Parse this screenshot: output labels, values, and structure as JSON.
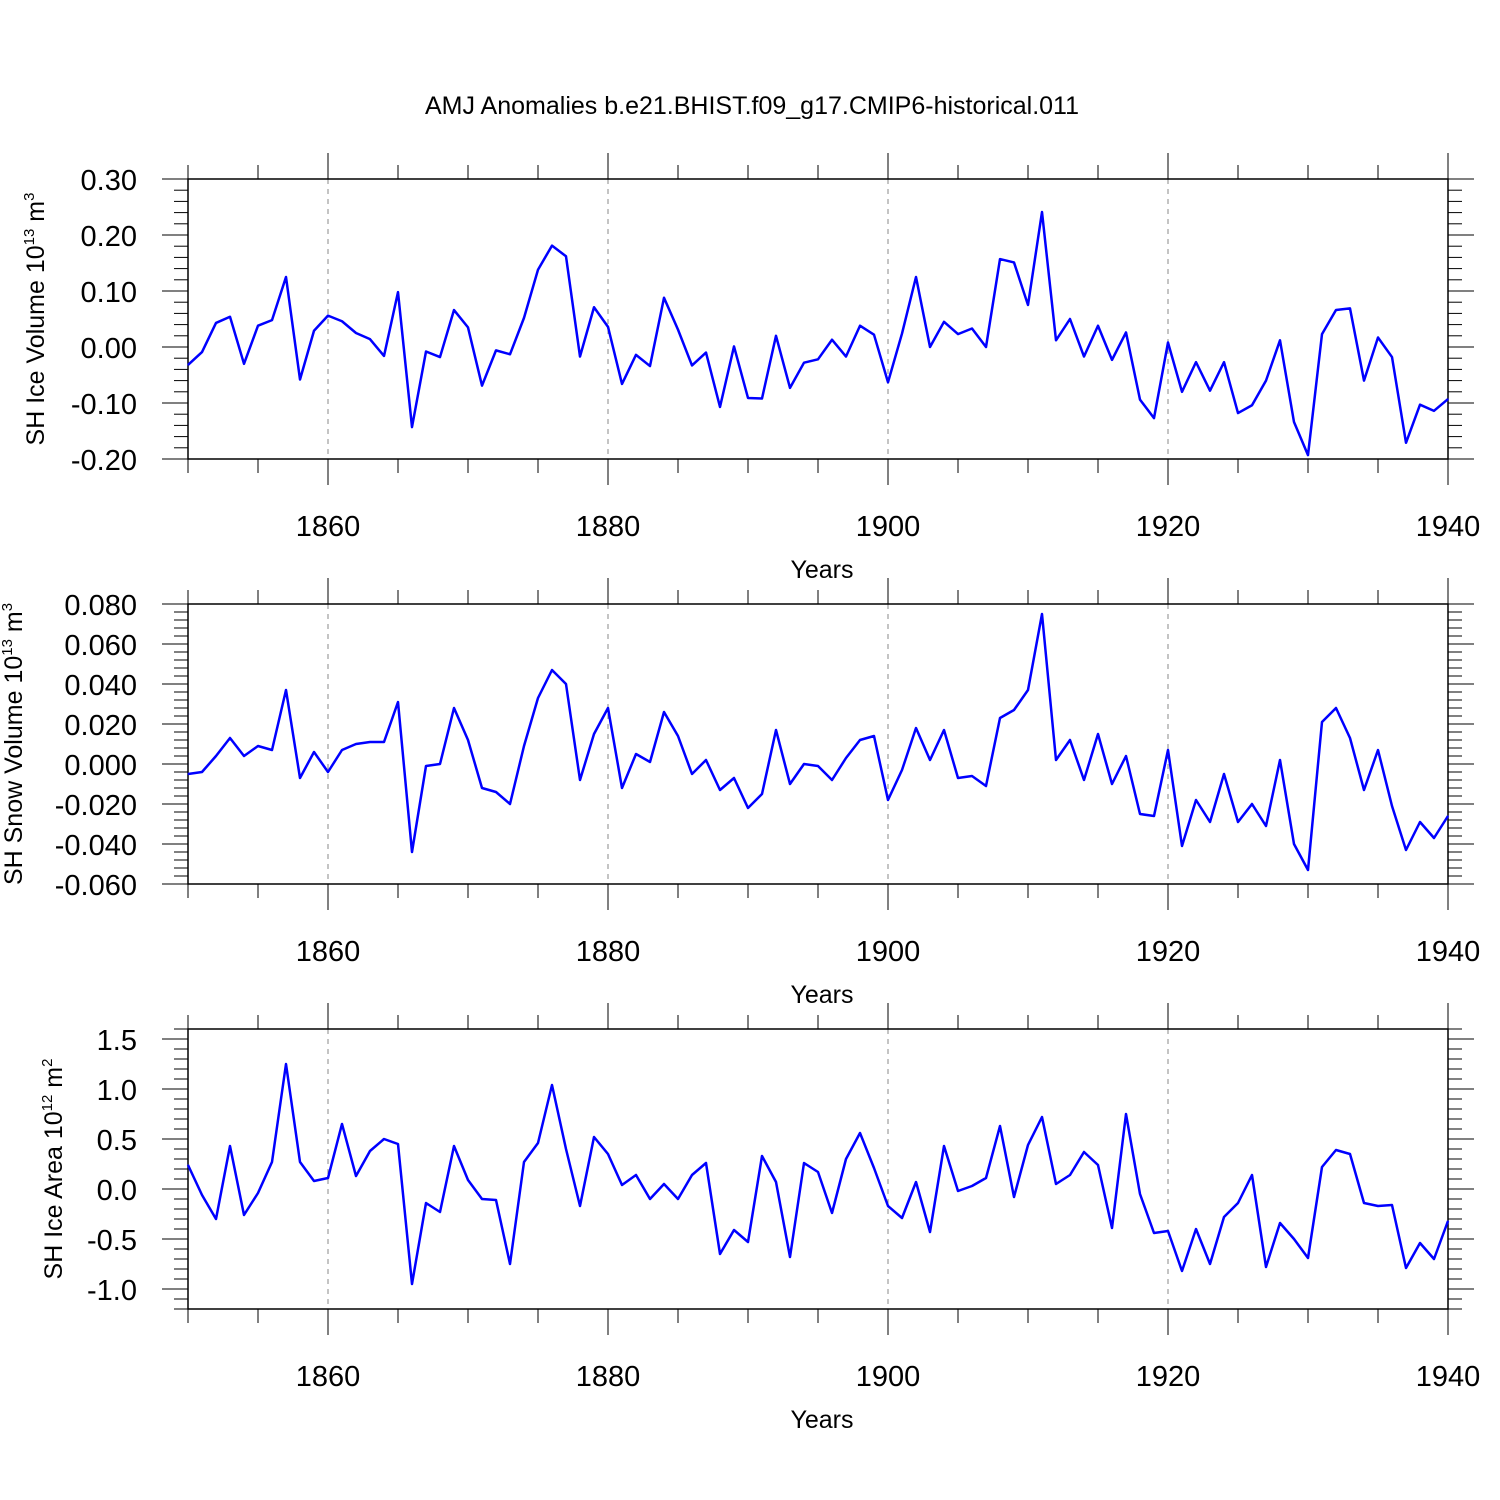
{
  "title": "AMJ Anomalies b.e21.BHIST.f09_g17.CMIP6-historical.011",
  "chart_data": [
    {
      "type": "line",
      "ylabel_main": "SH Ice Volume 10",
      "ylabel_exp": "13",
      "ylabel_unit": " m",
      "ylabel_unit_exp": "3",
      "xlabel": "Years",
      "xlim": [
        1850,
        1940
      ],
      "ylim": [
        -0.2,
        0.3
      ],
      "yticks": [
        -0.2,
        -0.1,
        0.0,
        0.1,
        0.2,
        0.3
      ],
      "ytick_labels": [
        "-0.20",
        "-0.10",
        "0.00",
        "0.10",
        "0.20",
        "0.30"
      ],
      "xticks": [
        1860,
        1880,
        1900,
        1920,
        1940
      ],
      "xtick_labels": [
        "1860",
        "1880",
        "1900",
        "1920",
        "1940"
      ],
      "gridlines_x": [
        1860,
        1880,
        1900,
        1920
      ],
      "color": "#0000ff",
      "x_start": 1850,
      "values": [
        -0.032,
        -0.009,
        0.043,
        0.054,
        -0.03,
        0.038,
        0.048,
        0.125,
        -0.058,
        0.029,
        0.056,
        0.046,
        0.025,
        0.014,
        -0.016,
        0.098,
        -0.143,
        -0.008,
        -0.018,
        0.066,
        0.035,
        -0.069,
        -0.006,
        -0.013,
        0.052,
        0.138,
        0.181,
        0.162,
        -0.017,
        0.071,
        0.036,
        -0.066,
        -0.014,
        -0.034,
        0.088,
        0.031,
        -0.033,
        -0.01,
        -0.107,
        0.001,
        -0.091,
        -0.092,
        0.02,
        -0.073,
        -0.028,
        -0.022,
        0.013,
        -0.017,
        0.038,
        0.022,
        -0.063,
        0.024,
        0.125,
        0.0,
        0.045,
        0.023,
        0.033,
        0.0,
        0.157,
        0.151,
        0.075,
        0.241,
        0.012,
        0.05,
        -0.017,
        0.038,
        -0.023,
        0.026,
        -0.094,
        -0.127,
        0.008,
        -0.08,
        -0.027,
        -0.078,
        -0.027,
        -0.118,
        -0.104,
        -0.06,
        0.012,
        -0.134,
        -0.193,
        0.023,
        0.066,
        0.069,
        -0.06,
        0.017,
        -0.018,
        -0.171,
        -0.103,
        -0.114,
        -0.093
      ]
    },
    {
      "type": "line",
      "ylabel_main": "SH Snow Volume 10",
      "ylabel_exp": "13",
      "ylabel_unit": " m",
      "ylabel_unit_exp": "3",
      "xlabel": "Years",
      "xlim": [
        1850,
        1940
      ],
      "ylim": [
        -0.06,
        0.08
      ],
      "yticks": [
        -0.06,
        -0.04,
        -0.02,
        0.0,
        0.02,
        0.04,
        0.06,
        0.08
      ],
      "ytick_labels": [
        "-0.060",
        "-0.040",
        "-0.020",
        "0.000",
        "0.020",
        "0.040",
        "0.060",
        "0.080"
      ],
      "xticks": [
        1860,
        1880,
        1900,
        1920,
        1940
      ],
      "xtick_labels": [
        "1860",
        "1880",
        "1900",
        "1920",
        "1940"
      ],
      "gridlines_x": [
        1860,
        1880,
        1900,
        1920
      ],
      "color": "#0000ff",
      "x_start": 1850,
      "values": [
        -0.005,
        -0.004,
        0.004,
        0.013,
        0.004,
        0.009,
        0.007,
        0.037,
        -0.007,
        0.006,
        -0.004,
        0.007,
        0.01,
        0.011,
        0.011,
        0.031,
        -0.044,
        -0.001,
        0.0,
        0.028,
        0.012,
        -0.012,
        -0.014,
        -0.02,
        0.009,
        0.033,
        0.047,
        0.04,
        -0.008,
        0.015,
        0.028,
        -0.012,
        0.005,
        0.001,
        0.026,
        0.014,
        -0.005,
        0.002,
        -0.013,
        -0.007,
        -0.022,
        -0.015,
        0.017,
        -0.01,
        0.0,
        -0.001,
        -0.008,
        0.003,
        0.012,
        0.014,
        -0.018,
        -0.003,
        0.018,
        0.002,
        0.017,
        -0.007,
        -0.006,
        -0.011,
        0.023,
        0.027,
        0.037,
        0.075,
        0.002,
        0.012,
        -0.008,
        0.015,
        -0.01,
        0.004,
        -0.025,
        -0.026,
        0.007,
        -0.041,
        -0.018,
        -0.029,
        -0.005,
        -0.029,
        -0.02,
        -0.031,
        0.002,
        -0.04,
        -0.053,
        0.021,
        0.028,
        0.013,
        -0.013,
        0.007,
        -0.021,
        -0.043,
        -0.029,
        -0.037,
        -0.026
      ]
    },
    {
      "type": "line",
      "ylabel_main": "SH Ice Area 10",
      "ylabel_exp": "12",
      "ylabel_unit": " m",
      "ylabel_unit_exp": "2",
      "xlabel": "Years",
      "xlim": [
        1850,
        1940
      ],
      "ylim": [
        -1.2,
        1.6
      ],
      "yticks": [
        -1.0,
        -0.5,
        0.0,
        0.5,
        1.0,
        1.5
      ],
      "ytick_labels": [
        "-1.0",
        "-0.5",
        "0.0",
        "0.5",
        "1.0",
        "1.5"
      ],
      "xticks": [
        1860,
        1880,
        1900,
        1920,
        1940
      ],
      "xtick_labels": [
        "1860",
        "1880",
        "1900",
        "1920",
        "1940"
      ],
      "gridlines_x": [
        1860,
        1900,
        1920
      ],
      "color": "#0000ff",
      "x_start": 1850,
      "values": [
        0.24,
        -0.06,
        -0.3,
        0.43,
        -0.26,
        -0.04,
        0.27,
        1.25,
        0.27,
        0.08,
        0.11,
        0.65,
        0.13,
        0.38,
        0.5,
        0.45,
        -0.95,
        -0.14,
        -0.23,
        0.43,
        0.09,
        -0.1,
        -0.11,
        -0.75,
        0.27,
        0.46,
        1.04,
        0.4,
        -0.17,
        0.52,
        0.35,
        0.04,
        0.14,
        -0.1,
        0.05,
        -0.1,
        0.14,
        0.26,
        -0.65,
        -0.41,
        -0.53,
        0.33,
        0.07,
        -0.68,
        0.26,
        0.17,
        -0.24,
        0.3,
        0.56,
        0.21,
        -0.17,
        -0.29,
        0.07,
        -0.43,
        0.43,
        -0.02,
        0.03,
        0.11,
        0.63,
        -0.08,
        0.44,
        0.72,
        0.05,
        0.14,
        0.37,
        0.24,
        -0.39,
        0.75,
        -0.05,
        -0.44,
        -0.42,
        -0.82,
        -0.4,
        -0.75,
        -0.28,
        -0.14,
        0.14,
        -0.78,
        -0.34,
        -0.5,
        -0.69,
        0.22,
        0.39,
        0.35,
        -0.14,
        -0.17,
        -0.16,
        -0.79,
        -0.54,
        -0.7,
        -0.32
      ]
    }
  ]
}
